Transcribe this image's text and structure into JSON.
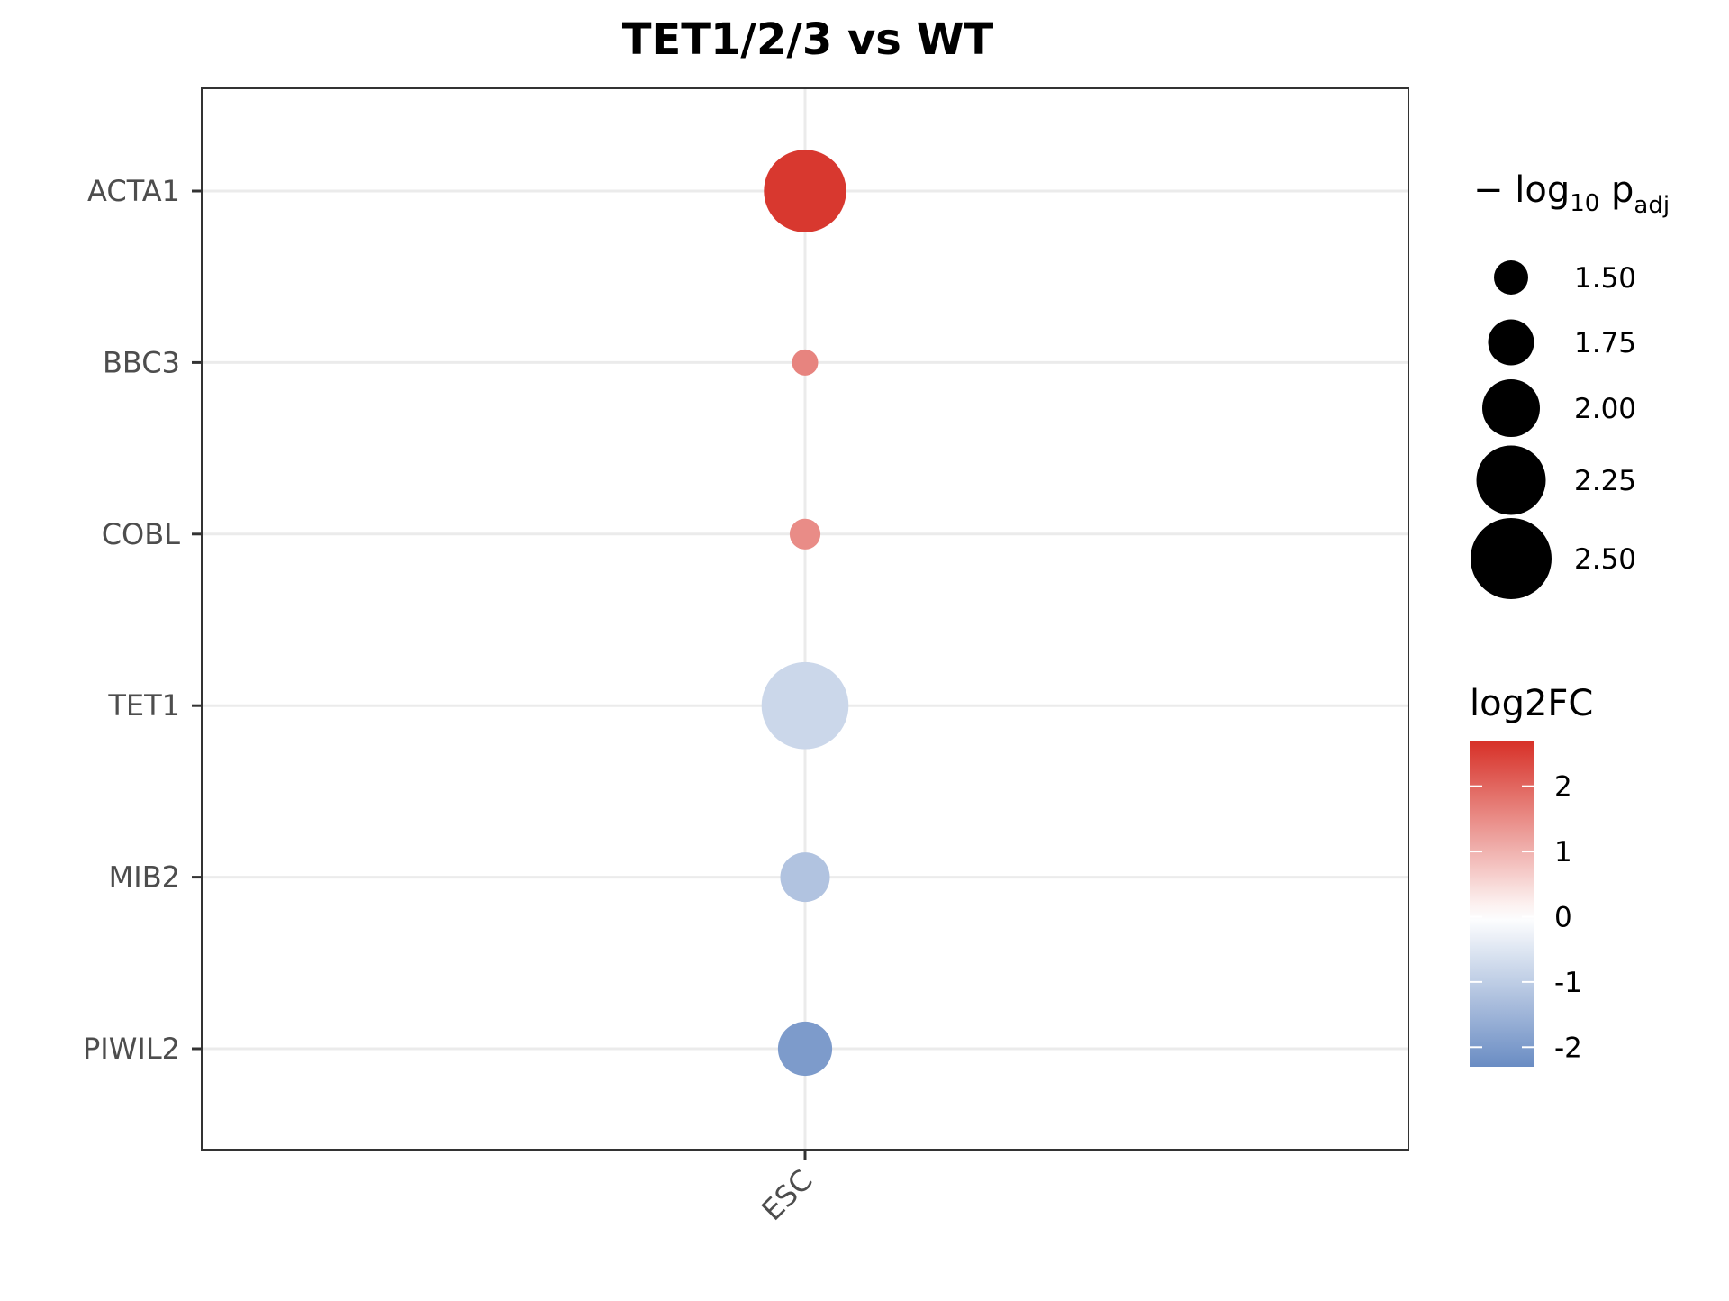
{
  "chart_data": {
    "type": "scatter",
    "title": "TET1/2/3 vs WT",
    "xlabel": "",
    "ylabel": "",
    "x_categories": [
      "ESC"
    ],
    "y_categories": [
      "ACTA1",
      "BBC3",
      "COBL",
      "TET1",
      "MIB2",
      "PIWIL2"
    ],
    "points": [
      {
        "gene": "ACTA1",
        "group": "ESC",
        "log2FC": 2.6,
        "neg_log10_padj": 2.45
      },
      {
        "gene": "BBC3",
        "group": "ESC",
        "log2FC": 1.6,
        "neg_log10_padj": 1.25
      },
      {
        "gene": "COBL",
        "group": "ESC",
        "log2FC": 1.5,
        "neg_log10_padj": 1.35
      },
      {
        "gene": "TET1",
        "group": "ESC",
        "log2FC": -0.8,
        "neg_log10_padj": 2.55
      },
      {
        "gene": "MIB2",
        "group": "ESC",
        "log2FC": -1.2,
        "neg_log10_padj": 1.75
      },
      {
        "gene": "PIWIL2",
        "group": "ESC",
        "log2FC": -2.0,
        "neg_log10_padj": 1.85
      }
    ],
    "grid": true,
    "size_legend": {
      "title_prefix": "− log",
      "title_sub": "10",
      "title_p": " p",
      "title_p_sub": "adj",
      "breaks": [
        1.5,
        1.75,
        2.0,
        2.25,
        2.5
      ],
      "labels": [
        "1.50",
        "1.75",
        "2.00",
        "2.25",
        "2.50"
      ]
    },
    "color_legend": {
      "title": "log2FC",
      "range": [
        -2.3,
        2.7
      ],
      "ticks": [
        2,
        1,
        0,
        -1,
        -2
      ],
      "tick_labels": [
        "2",
        "1",
        "0",
        "-1",
        "-2"
      ],
      "low_color": "#6a8cc3",
      "mid_color": "#ffffff",
      "high_color": "#d73027"
    },
    "legend_position": "right"
  }
}
